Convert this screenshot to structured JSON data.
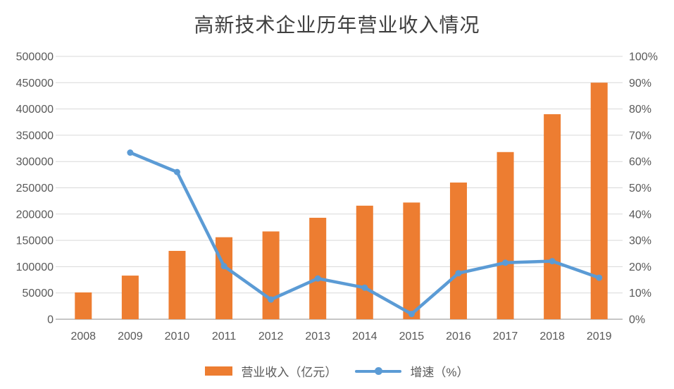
{
  "title": "高新技术企业历年营业收入情况",
  "legend": {
    "revenue_label": "营业收入（亿元）",
    "growth_label": "增速（%）"
  },
  "colors": {
    "bar": "#ED7D31",
    "line": "#5B9BD5",
    "grid": "#D9D9D9",
    "baseline": "#C6C6C6",
    "axis_text": "#595959",
    "title_text": "#3F3F3F",
    "background": "#FFFFFF"
  },
  "chart_data": {
    "type": "bar",
    "subtype": "combo-bar-line-dual-axis",
    "title": "高新技术企业历年营业收入情况",
    "categories": [
      "2008",
      "2009",
      "2010",
      "2011",
      "2012",
      "2013",
      "2014",
      "2015",
      "2016",
      "2017",
      "2018",
      "2019"
    ],
    "series": [
      {
        "name": "营业收入（亿元）",
        "type": "bar",
        "axis": "left",
        "values": [
          51000,
          83000,
          130000,
          156000,
          167000,
          193000,
          216000,
          222000,
          260000,
          318000,
          390000,
          450000
        ]
      },
      {
        "name": "增速（%）",
        "type": "line",
        "axis": "right",
        "values": [
          null,
          63.4,
          56.0,
          20.2,
          7.5,
          15.5,
          12.0,
          2.0,
          17.5,
          21.5,
          22.1,
          15.8
        ]
      }
    ],
    "left_axis": {
      "min": 0,
      "max": 500000,
      "step": 50000,
      "tick_labels": [
        "0",
        "50000",
        "100000",
        "150000",
        "200000",
        "250000",
        "300000",
        "350000",
        "400000",
        "450000",
        "500000"
      ]
    },
    "right_axis": {
      "min": 0,
      "max": 100,
      "step": 10,
      "tick_labels": [
        "0%",
        "10%",
        "20%",
        "30%",
        "40%",
        "50%",
        "60%",
        "70%",
        "80%",
        "90%",
        "100%"
      ]
    },
    "grid": "horizontal",
    "legend_position": "bottom"
  }
}
